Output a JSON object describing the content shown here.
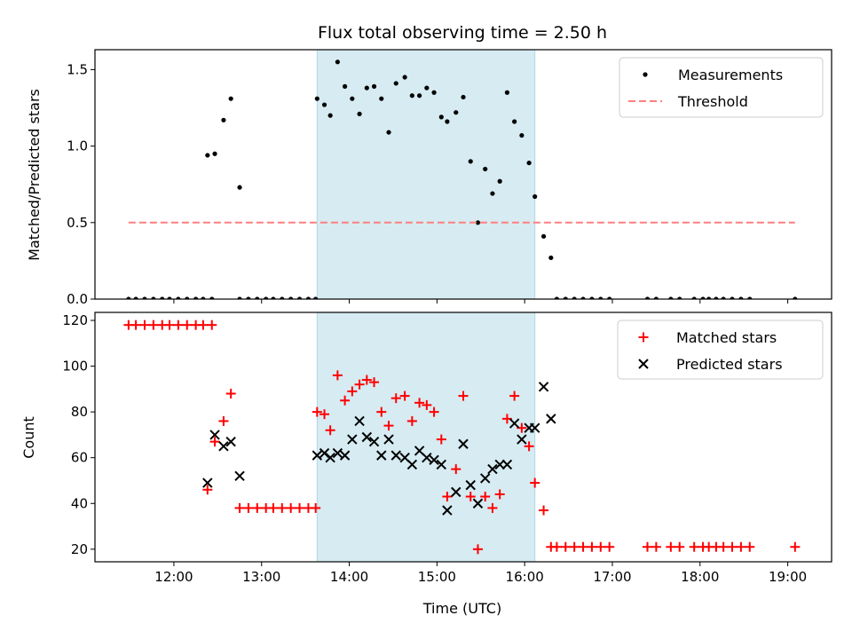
{
  "chart_data": [
    {
      "type": "scatter",
      "title": "Flux total observing time = 2.50 h",
      "ylabel": "Matched/Predicted stars",
      "xlabel": "",
      "ylim": [
        0,
        1.63
      ],
      "xlim": [
        "11:06",
        "19:30"
      ],
      "yticks": [
        0.0,
        0.5,
        1.0,
        1.5
      ],
      "ytick_labels": [
        "0.0",
        "0.5",
        "1.0",
        "1.5"
      ],
      "legend_position": "top-right",
      "highlight_span": {
        "start": "13:38",
        "end": "16:07",
        "color": "#add8e6"
      },
      "series": [
        {
          "name": "Measurements",
          "color": "#000000",
          "marker": "dot",
          "points": [
            [
              "11:29",
              0
            ],
            [
              "11:34",
              0
            ],
            [
              "11:40",
              0
            ],
            [
              "11:46",
              0
            ],
            [
              "11:52",
              0
            ],
            [
              "11:57",
              0
            ],
            [
              "12:03",
              0
            ],
            [
              "12:09",
              0
            ],
            [
              "12:15",
              0
            ],
            [
              "12:20",
              0
            ],
            [
              "12:26",
              0
            ],
            [
              "12:23",
              0.94
            ],
            [
              "12:28",
              0.95
            ],
            [
              "12:34",
              1.17
            ],
            [
              "12:39",
              1.31
            ],
            [
              "12:45",
              0.73
            ],
            [
              "12:45",
              0
            ],
            [
              "12:51",
              0
            ],
            [
              "12:57",
              0
            ],
            [
              "13:03",
              0
            ],
            [
              "13:08",
              0
            ],
            [
              "13:14",
              0
            ],
            [
              "13:20",
              0
            ],
            [
              "13:26",
              0
            ],
            [
              "13:32",
              0
            ],
            [
              "13:37",
              0
            ],
            [
              "13:38",
              1.31
            ],
            [
              "13:43",
              1.27
            ],
            [
              "13:47",
              1.2
            ],
            [
              "13:52",
              1.55
            ],
            [
              "13:57",
              1.39
            ],
            [
              "14:02",
              1.31
            ],
            [
              "14:07",
              1.21
            ],
            [
              "14:12",
              1.38
            ],
            [
              "14:17",
              1.39
            ],
            [
              "14:22",
              1.31
            ],
            [
              "14:27",
              1.09
            ],
            [
              "14:32",
              1.41
            ],
            [
              "14:38",
              1.45
            ],
            [
              "14:43",
              1.33
            ],
            [
              "14:48",
              1.33
            ],
            [
              "14:53",
              1.38
            ],
            [
              "14:58",
              1.35
            ],
            [
              "15:03",
              1.19
            ],
            [
              "15:07",
              1.16
            ],
            [
              "15:13",
              1.22
            ],
            [
              "15:18",
              1.32
            ],
            [
              "15:23",
              0.9
            ],
            [
              "15:28",
              0.5
            ],
            [
              "15:33",
              0.85
            ],
            [
              "15:38",
              0.69
            ],
            [
              "15:43",
              0.77
            ],
            [
              "15:48",
              1.35
            ],
            [
              "15:53",
              1.16
            ],
            [
              "15:58",
              1.07
            ],
            [
              "16:03",
              0.89
            ],
            [
              "16:07",
              0.67
            ],
            [
              "16:13",
              0.41
            ],
            [
              "16:18",
              0.27
            ],
            [
              "16:22",
              0
            ],
            [
              "16:28",
              0
            ],
            [
              "16:34",
              0
            ],
            [
              "16:40",
              0
            ],
            [
              "16:46",
              0
            ],
            [
              "16:52",
              0
            ],
            [
              "16:58",
              0
            ],
            [
              "17:24",
              0
            ],
            [
              "17:30",
              0
            ],
            [
              "17:40",
              0
            ],
            [
              "17:46",
              0
            ],
            [
              "17:56",
              0
            ],
            [
              "18:02",
              0
            ],
            [
              "18:06",
              0
            ],
            [
              "18:11",
              0
            ],
            [
              "18:16",
              0
            ],
            [
              "18:22",
              0
            ],
            [
              "18:28",
              0
            ],
            [
              "18:34",
              0
            ],
            [
              "19:05",
              0
            ]
          ]
        },
        {
          "name": "Threshold",
          "color": "#ff7f7f",
          "style": "dashed",
          "points": [
            [
              "11:29",
              0.5
            ],
            [
              "19:05",
              0.5
            ]
          ]
        }
      ]
    },
    {
      "type": "scatter",
      "title": "",
      "xlabel": "Time (UTC)",
      "ylabel": "Count",
      "ylim": [
        14.5,
        123.5
      ],
      "xlim": [
        "11:06",
        "19:30"
      ],
      "yticks": [
        20,
        40,
        60,
        80,
        100,
        120
      ],
      "ytick_labels": [
        "20",
        "40",
        "60",
        "80",
        "100",
        "120"
      ],
      "xticks": [
        "12:00",
        "13:00",
        "14:00",
        "15:00",
        "16:00",
        "17:00",
        "18:00",
        "19:00"
      ],
      "xtick_labels": [
        "12:00",
        "13:00",
        "14:00",
        "15:00",
        "16:00",
        "17:00",
        "18:00",
        "19:00"
      ],
      "legend_position": "top-right",
      "highlight_span": {
        "start": "13:38",
        "end": "16:07",
        "color": "#add8e6"
      },
      "series": [
        {
          "name": "Matched stars",
          "color": "#ff0000",
          "marker": "plus",
          "points": [
            [
              "11:29",
              118
            ],
            [
              "11:34",
              118
            ],
            [
              "11:40",
              118
            ],
            [
              "11:46",
              118
            ],
            [
              "11:52",
              118
            ],
            [
              "11:57",
              118
            ],
            [
              "12:03",
              118
            ],
            [
              "12:09",
              118
            ],
            [
              "12:15",
              118
            ],
            [
              "12:20",
              118
            ],
            [
              "12:26",
              118
            ],
            [
              "12:23",
              46
            ],
            [
              "12:28",
              67
            ],
            [
              "12:34",
              76
            ],
            [
              "12:39",
              88
            ],
            [
              "12:45",
              38
            ],
            [
              "12:51",
              38
            ],
            [
              "12:57",
              38
            ],
            [
              "13:03",
              38
            ],
            [
              "13:08",
              38
            ],
            [
              "13:14",
              38
            ],
            [
              "13:20",
              38
            ],
            [
              "13:26",
              38
            ],
            [
              "13:32",
              38
            ],
            [
              "13:37",
              38
            ],
            [
              "13:38",
              80
            ],
            [
              "13:43",
              79
            ],
            [
              "13:47",
              72
            ],
            [
              "13:52",
              96
            ],
            [
              "13:57",
              85
            ],
            [
              "14:02",
              89
            ],
            [
              "14:07",
              92
            ],
            [
              "14:12",
              94
            ],
            [
              "14:17",
              93
            ],
            [
              "14:22",
              80
            ],
            [
              "14:27",
              74
            ],
            [
              "14:32",
              86
            ],
            [
              "14:38",
              87
            ],
            [
              "14:43",
              76
            ],
            [
              "14:48",
              84
            ],
            [
              "14:53",
              83
            ],
            [
              "14:58",
              80
            ],
            [
              "15:03",
              68
            ],
            [
              "15:07",
              43
            ],
            [
              "15:13",
              55
            ],
            [
              "15:18",
              87
            ],
            [
              "15:23",
              43
            ],
            [
              "15:28",
              20
            ],
            [
              "15:33",
              43
            ],
            [
              "15:38",
              38
            ],
            [
              "15:43",
              44
            ],
            [
              "15:48",
              77
            ],
            [
              "15:53",
              87
            ],
            [
              "15:58",
              73
            ],
            [
              "16:03",
              65
            ],
            [
              "16:07",
              49
            ],
            [
              "16:13",
              37
            ],
            [
              "16:18",
              21
            ],
            [
              "16:22",
              21
            ],
            [
              "16:28",
              21
            ],
            [
              "16:34",
              21
            ],
            [
              "16:40",
              21
            ],
            [
              "16:46",
              21
            ],
            [
              "16:52",
              21
            ],
            [
              "16:58",
              21
            ],
            [
              "17:24",
              21
            ],
            [
              "17:30",
              21
            ],
            [
              "17:40",
              21
            ],
            [
              "17:46",
              21
            ],
            [
              "17:56",
              21
            ],
            [
              "18:02",
              21
            ],
            [
              "18:06",
              21
            ],
            [
              "18:11",
              21
            ],
            [
              "18:16",
              21
            ],
            [
              "18:22",
              21
            ],
            [
              "18:28",
              21
            ],
            [
              "18:34",
              21
            ],
            [
              "19:05",
              21
            ]
          ]
        },
        {
          "name": "Predicted stars",
          "color": "#000000",
          "marker": "x",
          "points": [
            [
              "12:23",
              49
            ],
            [
              "12:28",
              70
            ],
            [
              "12:34",
              65
            ],
            [
              "12:39",
              67
            ],
            [
              "12:45",
              52
            ],
            [
              "13:38",
              61
            ],
            [
              "13:43",
              62
            ],
            [
              "13:47",
              60
            ],
            [
              "13:52",
              62
            ],
            [
              "13:57",
              61
            ],
            [
              "14:02",
              68
            ],
            [
              "14:07",
              76
            ],
            [
              "14:12",
              69
            ],
            [
              "14:17",
              67
            ],
            [
              "14:22",
              61
            ],
            [
              "14:27",
              68
            ],
            [
              "14:32",
              61
            ],
            [
              "14:38",
              60
            ],
            [
              "14:43",
              57
            ],
            [
              "14:48",
              63
            ],
            [
              "14:53",
              60
            ],
            [
              "14:58",
              59
            ],
            [
              "15:03",
              57
            ],
            [
              "15:07",
              37
            ],
            [
              "15:13",
              45
            ],
            [
              "15:18",
              66
            ],
            [
              "15:23",
              48
            ],
            [
              "15:28",
              40
            ],
            [
              "15:33",
              51
            ],
            [
              "15:38",
              55
            ],
            [
              "15:43",
              57
            ],
            [
              "15:48",
              57
            ],
            [
              "15:53",
              75
            ],
            [
              "15:58",
              68
            ],
            [
              "16:03",
              73
            ],
            [
              "16:07",
              73
            ],
            [
              "16:13",
              91
            ],
            [
              "16:18",
              77
            ]
          ]
        }
      ]
    }
  ]
}
